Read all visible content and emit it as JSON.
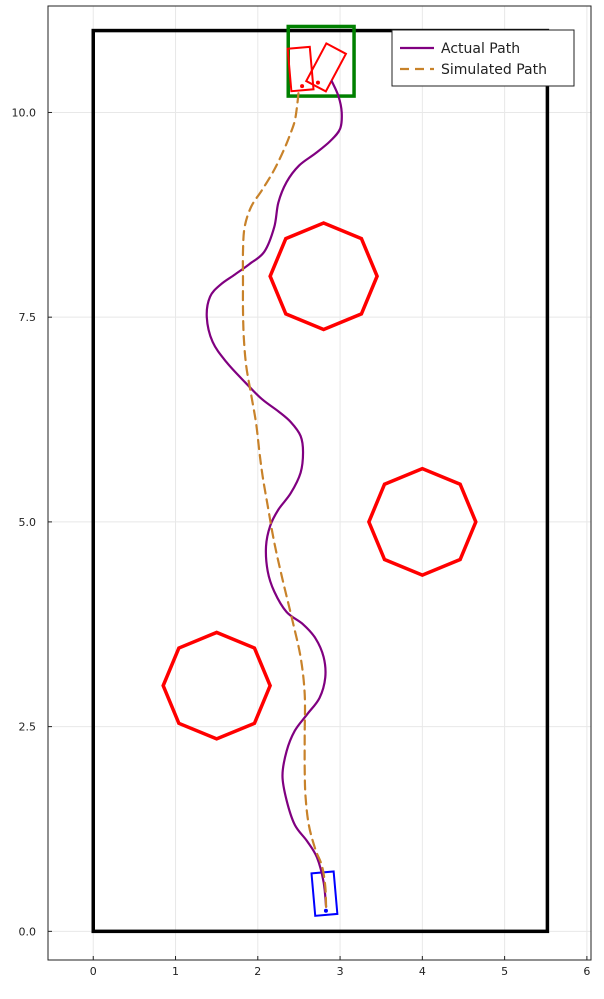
{
  "chart_data": {
    "type": "line",
    "title": "",
    "xlabel": "",
    "ylabel": "",
    "xlim": [
      -0.55,
      6.05
    ],
    "ylim": [
      -0.35,
      11.3
    ],
    "xticks": [
      0,
      1,
      2,
      3,
      4,
      5,
      6
    ],
    "xtick_labels": [
      "0",
      "1",
      "2",
      "3",
      "4",
      "5",
      "6"
    ],
    "yticks": [
      0,
      2.5,
      5,
      7.5,
      10
    ],
    "ytick_labels": [
      "0.0",
      "2.5",
      "5.0",
      "7.5",
      "10.0"
    ],
    "grid": true,
    "legend_position": "top-right",
    "boundary": {
      "x": [
        0,
        5.52
      ],
      "y": [
        0,
        11.0
      ],
      "color": "#000000"
    },
    "goal_region": {
      "x": [
        2.37,
        3.17
      ],
      "y": [
        10.2,
        11.05
      ],
      "color": "#008000"
    },
    "obstacles": {
      "shape": "octagon",
      "radius": 0.65,
      "color": "#ff0000",
      "centers": [
        [
          2.8,
          8.0
        ],
        [
          4.0,
          5.0
        ],
        [
          1.5,
          3.0
        ]
      ]
    },
    "start_vehicle": {
      "center": [
        2.81,
        0.46
      ],
      "width": 0.27,
      "length": 0.52,
      "heading_deg": 95,
      "color": "#0000ff"
    },
    "final_vehicles": [
      {
        "center": [
          2.52,
          10.53
        ],
        "width": 0.27,
        "length": 0.52,
        "heading_deg": 95,
        "color": "#ff0000"
      },
      {
        "center": [
          2.83,
          10.55
        ],
        "width": 0.27,
        "length": 0.52,
        "heading_deg": 62,
        "color": "#ff0000"
      }
    ],
    "series": [
      {
        "name": "Actual Path",
        "color": "#800080",
        "style": "solid",
        "x": [
          2.83,
          2.8,
          2.72,
          2.6,
          2.45,
          2.35,
          2.3,
          2.35,
          2.45,
          2.6,
          2.75,
          2.82,
          2.8,
          2.7,
          2.55,
          2.35,
          2.2,
          2.12,
          2.1,
          2.15,
          2.25,
          2.4,
          2.52,
          2.55,
          2.52,
          2.4,
          2.25,
          2.05,
          1.85,
          1.62,
          1.45,
          1.38,
          1.42,
          1.55,
          1.72,
          1.9,
          2.08,
          2.2,
          2.25,
          2.35,
          2.5,
          2.7,
          2.88,
          3.0,
          3.02,
          2.98,
          2.9
        ],
        "y": [
          0.3,
          0.6,
          0.9,
          1.1,
          1.3,
          1.6,
          1.9,
          2.2,
          2.45,
          2.65,
          2.85,
          3.1,
          3.35,
          3.58,
          3.75,
          3.9,
          4.15,
          4.4,
          4.7,
          4.95,
          5.15,
          5.35,
          5.6,
          5.85,
          6.05,
          6.22,
          6.35,
          6.5,
          6.7,
          6.95,
          7.2,
          7.5,
          7.75,
          7.9,
          8.02,
          8.15,
          8.3,
          8.6,
          8.9,
          9.15,
          9.35,
          9.5,
          9.65,
          9.8,
          10.0,
          10.2,
          10.38
        ]
      },
      {
        "name": "Simulated Path",
        "color": "#c8822a",
        "style": "dashed",
        "x": [
          2.83,
          2.82,
          2.78,
          2.7,
          2.62,
          2.58,
          2.57,
          2.57,
          2.57,
          2.52,
          2.42,
          2.3,
          2.2,
          2.12,
          2.06,
          2.02,
          1.98,
          1.92,
          1.86,
          1.83,
          1.82,
          1.82,
          1.82,
          1.84,
          1.92,
          2.05,
          2.2,
          2.32,
          2.4,
          2.45,
          2.48,
          2.5
        ],
        "y": [
          0.3,
          0.55,
          0.8,
          1.0,
          1.3,
          1.65,
          2.0,
          2.4,
          2.9,
          3.35,
          3.8,
          4.3,
          4.75,
          5.2,
          5.55,
          5.85,
          6.2,
          6.55,
          6.9,
          7.25,
          7.6,
          7.95,
          8.3,
          8.6,
          8.85,
          9.05,
          9.3,
          9.55,
          9.75,
          9.9,
          10.1,
          10.3
        ]
      }
    ]
  }
}
